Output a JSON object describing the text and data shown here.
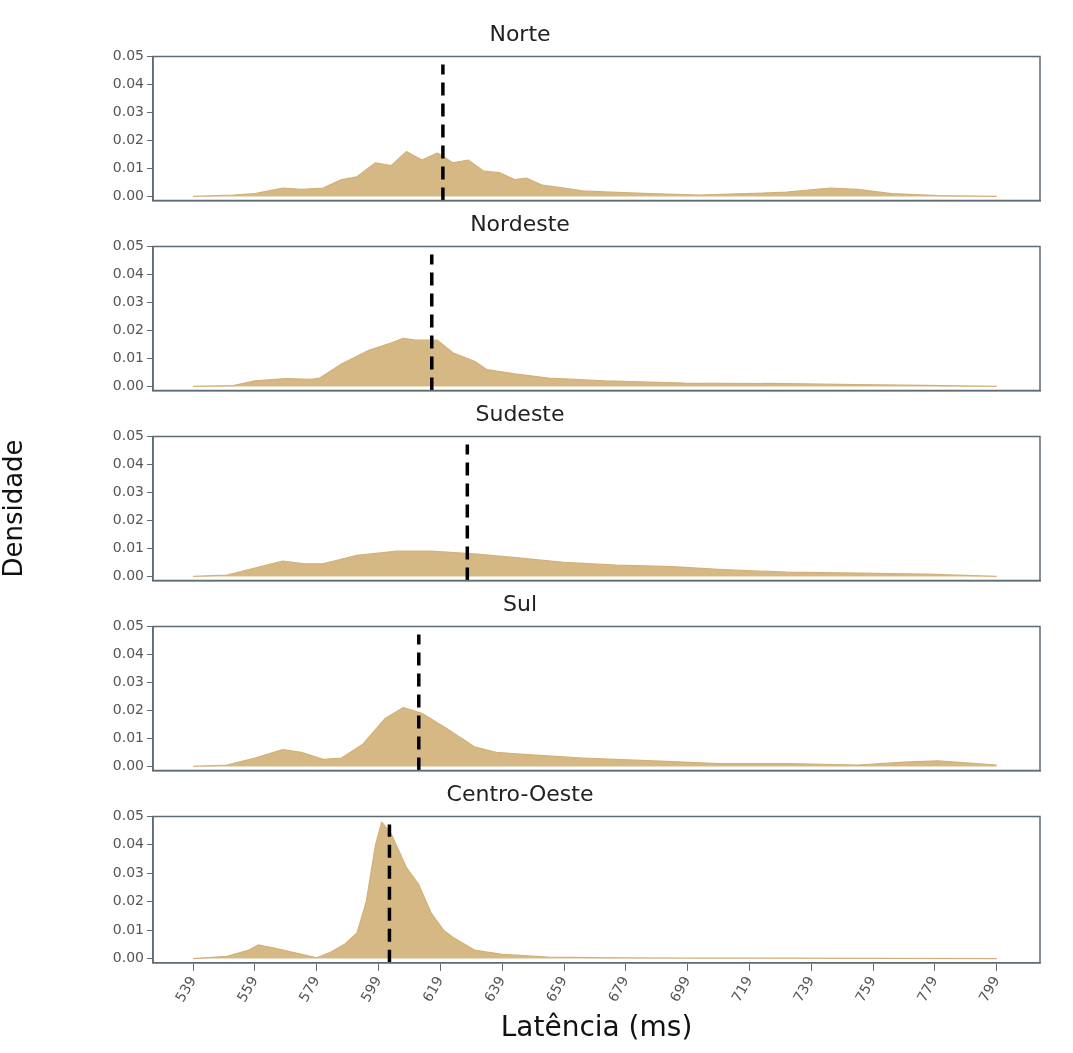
{
  "chart_data": [
    {
      "type": "area",
      "title": "Norte",
      "tick_labels": "y",
      "marker": "none",
      "xlim": [
        526,
        813
      ],
      "xticks": [
        539,
        559,
        579,
        599,
        619,
        639,
        659,
        679,
        699,
        719,
        739,
        759,
        779,
        799
      ],
      "ylim": [
        -0.0015,
        0.05
      ],
      "yticks": [
        {
          "value": 0,
          "label": "0.00"
        },
        {
          "value": 0.01,
          "label": "0.01"
        },
        {
          "value": 0.02,
          "label": "0.02"
        },
        {
          "value": 0.03,
          "label": "0.03"
        },
        {
          "value": 0.04,
          "label": "0.04"
        },
        {
          "value": 0.05,
          "label": "0.05"
        }
      ],
      "x": [
        539,
        552,
        559,
        568,
        574,
        581,
        587,
        592,
        598,
        603,
        608,
        613,
        618,
        623,
        628,
        633,
        638,
        643,
        647,
        652,
        659,
        665,
        674,
        687,
        703,
        718,
        731,
        745,
        754,
        765,
        780,
        799
      ],
      "series": [
        {
          "color": "#d2b078",
          "values": [
            0,
            0.0005,
            0.001,
            0.003,
            0.0025,
            0.003,
            0.006,
            0.007,
            0.012,
            0.011,
            0.016,
            0.013,
            0.0155,
            0.012,
            0.013,
            0.009,
            0.0085,
            0.006,
            0.0065,
            0.004,
            0.003,
            0.002,
            0.0015,
            0.001,
            0.0005,
            0.001,
            0.0015,
            0.003,
            0.0025,
            0.001,
            0.0003,
            0
          ]
        }
      ],
      "ref_lines": [
        {
          "axis": "x",
          "value": 619.8,
          "color": "#000000",
          "line_style": "dashed"
        }
      ]
    },
    {
      "type": "area",
      "title": "Nordeste",
      "tick_labels": "y",
      "marker": "none",
      "xlim": [
        526,
        813
      ],
      "xticks": [
        539,
        559,
        579,
        599,
        619,
        639,
        659,
        679,
        699,
        719,
        739,
        759,
        779,
        799
      ],
      "ylim": [
        -0.0015,
        0.05
      ],
      "yticks": [
        {
          "value": 0,
          "label": "0.00"
        },
        {
          "value": 0.01,
          "label": "0.01"
        },
        {
          "value": 0.02,
          "label": "0.02"
        },
        {
          "value": 0.03,
          "label": "0.03"
        },
        {
          "value": 0.04,
          "label": "0.04"
        },
        {
          "value": 0.05,
          "label": "0.05"
        }
      ],
      "x": [
        539,
        552,
        559,
        569,
        577,
        580,
        587,
        596,
        603,
        607,
        611,
        618,
        623,
        630,
        634,
        643,
        654,
        672,
        698,
        731,
        754,
        776,
        799
      ],
      "series": [
        {
          "color": "#d2b078",
          "values": [
            0,
            0.0003,
            0.002,
            0.0028,
            0.0025,
            0.003,
            0.008,
            0.013,
            0.0155,
            0.0172,
            0.0165,
            0.0165,
            0.012,
            0.009,
            0.006,
            0.0045,
            0.003,
            0.002,
            0.0012,
            0.001,
            0.0006,
            0.0004,
            0
          ]
        }
      ],
      "ref_lines": [
        {
          "axis": "x",
          "value": 616.2,
          "color": "#000000",
          "line_style": "dashed"
        }
      ]
    },
    {
      "type": "area",
      "title": "Sudeste",
      "ylabel": "Densidade",
      "tick_labels": "y",
      "marker": "none",
      "xlim": [
        526,
        813
      ],
      "xticks": [
        539,
        559,
        579,
        599,
        619,
        639,
        659,
        679,
        699,
        719,
        739,
        759,
        779,
        799
      ],
      "ylim": [
        -0.0015,
        0.05
      ],
      "yticks": [
        {
          "value": 0,
          "label": "0.00"
        },
        {
          "value": 0.01,
          "label": "0.01"
        },
        {
          "value": 0.02,
          "label": "0.02"
        },
        {
          "value": 0.03,
          "label": "0.03"
        },
        {
          "value": 0.04,
          "label": "0.04"
        },
        {
          "value": 0.05,
          "label": "0.05"
        }
      ],
      "x": [
        539,
        550,
        559,
        568,
        575,
        581,
        592,
        605,
        616,
        631,
        645,
        659,
        676,
        694,
        709,
        731,
        754,
        776,
        799
      ],
      "series": [
        {
          "color": "#d2b078",
          "values": [
            0,
            0.0005,
            0.003,
            0.0055,
            0.0045,
            0.0045,
            0.0075,
            0.009,
            0.009,
            0.008,
            0.0065,
            0.005,
            0.004,
            0.0035,
            0.0025,
            0.0015,
            0.0012,
            0.0008,
            0
          ]
        }
      ],
      "ref_lines": [
        {
          "axis": "x",
          "value": 627.7,
          "color": "#000000",
          "line_style": "dashed"
        }
      ]
    },
    {
      "type": "area",
      "title": "Sul",
      "tick_labels": "y",
      "marker": "none",
      "xlim": [
        526,
        813
      ],
      "xticks": [
        539,
        559,
        579,
        599,
        619,
        639,
        659,
        679,
        699,
        719,
        739,
        759,
        779,
        799
      ],
      "ylim": [
        -0.0015,
        0.05
      ],
      "yticks": [
        {
          "value": 0,
          "label": "0.00"
        },
        {
          "value": 0.01,
          "label": "0.01"
        },
        {
          "value": 0.02,
          "label": "0.02"
        },
        {
          "value": 0.03,
          "label": "0.03"
        },
        {
          "value": 0.04,
          "label": "0.04"
        },
        {
          "value": 0.05,
          "label": "0.05"
        }
      ],
      "x": [
        539,
        550,
        559,
        568,
        574,
        581,
        587,
        594,
        601,
        607,
        613,
        621,
        630,
        637,
        650,
        665,
        688,
        709,
        731,
        754,
        769,
        780,
        789,
        799
      ],
      "series": [
        {
          "color": "#d2b078",
          "values": [
            0,
            0.0005,
            0.003,
            0.006,
            0.005,
            0.0025,
            0.003,
            0.008,
            0.017,
            0.021,
            0.019,
            0.0135,
            0.007,
            0.005,
            0.004,
            0.003,
            0.002,
            0.001,
            0.001,
            0.0005,
            0.0015,
            0.002,
            0.0013,
            0.0005
          ]
        }
      ],
      "ref_lines": [
        {
          "axis": "x",
          "value": 612,
          "color": "#000000",
          "line_style": "dashed"
        }
      ]
    },
    {
      "type": "area",
      "title": "Centro-Oeste",
      "xlabel": "Latência (ms)",
      "marker": "none",
      "xlim": [
        526,
        813
      ],
      "xticks": [
        539,
        559,
        579,
        599,
        619,
        639,
        659,
        679,
        699,
        719,
        739,
        759,
        779,
        799
      ],
      "ylim": [
        -0.0015,
        0.05
      ],
      "yticks": [
        {
          "value": 0,
          "label": "0.00"
        },
        {
          "value": 0.01,
          "label": "0.01"
        },
        {
          "value": 0.02,
          "label": "0.02"
        },
        {
          "value": 0.03,
          "label": "0.03"
        },
        {
          "value": 0.04,
          "label": "0.04"
        },
        {
          "value": 0.05,
          "label": "0.05"
        }
      ],
      "x": [
        539,
        550,
        557,
        560,
        566,
        572,
        579,
        583,
        588,
        592,
        595,
        598,
        600,
        603,
        608,
        612,
        616,
        620,
        623,
        630,
        639,
        654,
        676,
        698,
        799
      ],
      "series": [
        {
          "color": "#d2b078",
          "values": [
            0,
            0.0008,
            0.003,
            0.0048,
            0.0035,
            0.002,
            0.0003,
            0.002,
            0.005,
            0.009,
            0.02,
            0.04,
            0.048,
            0.044,
            0.032,
            0.026,
            0.016,
            0.01,
            0.0075,
            0.003,
            0.0015,
            0.0005,
            0.0003,
            0.0002,
            0
          ]
        }
      ],
      "ref_lines": [
        {
          "axis": "x",
          "value": 602.5,
          "color": "#000000",
          "line_style": "dashed"
        }
      ]
    }
  ]
}
